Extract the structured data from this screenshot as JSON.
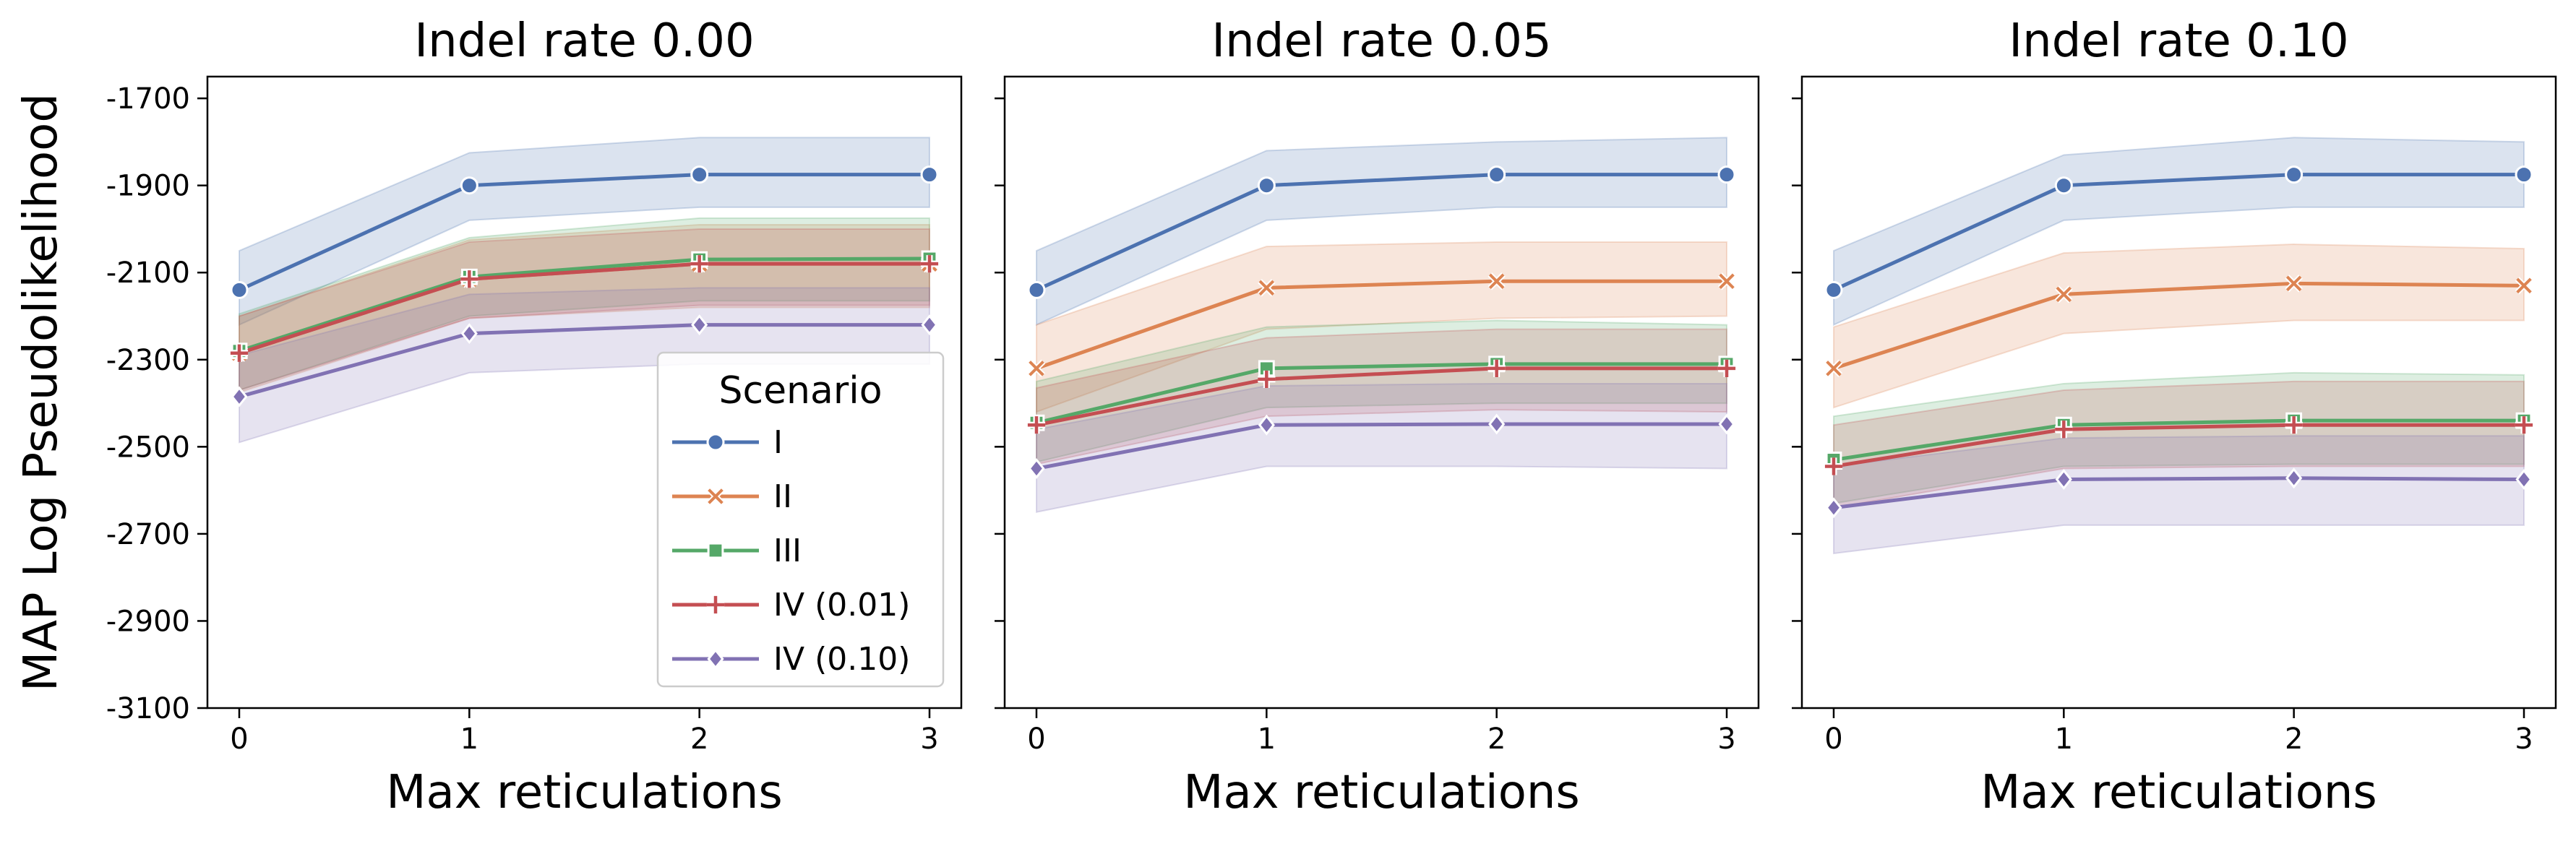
{
  "chart_data": {
    "type": "line",
    "ylabel": "MAP Log Pseudolikelihood",
    "ylim": [
      -3100,
      -1650
    ],
    "yticks": [
      -1700,
      -1900,
      -2100,
      -2300,
      -2500,
      -2700,
      -2900,
      -3100
    ],
    "x": [
      0,
      1,
      2,
      3
    ],
    "legend": {
      "title": "Scenario",
      "placement": "lower-right of first panel"
    },
    "series_style": [
      {
        "name": "I",
        "color": "#4c72b0",
        "marker": "circle"
      },
      {
        "name": "II",
        "color": "#dd8452",
        "marker": "x"
      },
      {
        "name": "III",
        "color": "#55a868",
        "marker": "square"
      },
      {
        "name": "IV (0.01)",
        "color": "#c44e52",
        "marker": "plus"
      },
      {
        "name": "IV (0.10)",
        "color": "#8172b3",
        "marker": "diamond"
      }
    ],
    "panels": [
      {
        "title": "Indel rate 0.00",
        "xlabel": "Max reticulations",
        "series": [
          {
            "name": "I",
            "values": [
              -2140,
              -1900,
              -1875,
              -1875
            ],
            "lower": [
              -2220,
              -1980,
              -1950,
              -1950
            ],
            "upper": [
              -2050,
              -1825,
              -1790,
              -1790
            ]
          },
          {
            "name": "II",
            "values": [
              -2285,
              -2115,
              -2080,
              -2080
            ],
            "lower": [
              -2375,
              -2205,
              -2180,
              -2180
            ],
            "upper": [
              -2200,
              -2025,
              -1990,
              -1990
            ]
          },
          {
            "name": "III",
            "values": [
              -2280,
              -2110,
              -2070,
              -2068
            ],
            "lower": [
              -2370,
              -2200,
              -2165,
              -2165
            ],
            "upper": [
              -2195,
              -2020,
              -1975,
              -1975
            ]
          },
          {
            "name": "IV (0.01)",
            "values": [
              -2285,
              -2115,
              -2080,
              -2080
            ],
            "lower": [
              -2370,
              -2205,
              -2175,
              -2175
            ],
            "upper": [
              -2200,
              -2030,
              -2000,
              -2000
            ]
          },
          {
            "name": "IV (0.10)",
            "values": [
              -2385,
              -2240,
              -2220,
              -2220
            ],
            "lower": [
              -2490,
              -2330,
              -2310,
              -2310
            ],
            "upper": [
              -2290,
              -2150,
              -2135,
              -2135
            ]
          }
        ]
      },
      {
        "title": "Indel rate 0.05",
        "xlabel": "Max reticulations",
        "series": [
          {
            "name": "I",
            "values": [
              -2140,
              -1900,
              -1875,
              -1875
            ],
            "lower": [
              -2220,
              -1980,
              -1950,
              -1950
            ],
            "upper": [
              -2050,
              -1820,
              -1800,
              -1790
            ]
          },
          {
            "name": "II",
            "values": [
              -2320,
              -2135,
              -2120,
              -2120
            ],
            "lower": [
              -2420,
              -2230,
              -2205,
              -2200
            ],
            "upper": [
              -2220,
              -2040,
              -2030,
              -2030
            ]
          },
          {
            "name": "III",
            "values": [
              -2445,
              -2320,
              -2310,
              -2310
            ],
            "lower": [
              -2535,
              -2410,
              -2400,
              -2400
            ],
            "upper": [
              -2350,
              -2225,
              -2210,
              -2220
            ]
          },
          {
            "name": "IV (0.01)",
            "values": [
              -2450,
              -2345,
              -2320,
              -2320
            ],
            "lower": [
              -2540,
              -2430,
              -2415,
              -2420
            ],
            "upper": [
              -2365,
              -2250,
              -2230,
              -2230
            ]
          },
          {
            "name": "IV (0.10)",
            "values": [
              -2550,
              -2450,
              -2448,
              -2448
            ],
            "lower": [
              -2650,
              -2545,
              -2545,
              -2550
            ],
            "upper": [
              -2460,
              -2360,
              -2355,
              -2355
            ]
          }
        ]
      },
      {
        "title": "Indel rate 0.10",
        "xlabel": "Max reticulations",
        "series": [
          {
            "name": "I",
            "values": [
              -2140,
              -1900,
              -1875,
              -1875
            ],
            "lower": [
              -2220,
              -1980,
              -1950,
              -1950
            ],
            "upper": [
              -2050,
              -1830,
              -1790,
              -1800
            ]
          },
          {
            "name": "II",
            "values": [
              -2320,
              -2150,
              -2125,
              -2130
            ],
            "lower": [
              -2410,
              -2240,
              -2210,
              -2210
            ],
            "upper": [
              -2225,
              -2055,
              -2035,
              -2045
            ]
          },
          {
            "name": "III",
            "values": [
              -2530,
              -2450,
              -2440,
              -2440
            ],
            "lower": [
              -2630,
              -2545,
              -2540,
              -2540
            ],
            "upper": [
              -2430,
              -2355,
              -2330,
              -2335
            ]
          },
          {
            "name": "IV (0.01)",
            "values": [
              -2545,
              -2460,
              -2450,
              -2450
            ],
            "lower": [
              -2640,
              -2550,
              -2545,
              -2545
            ],
            "upper": [
              -2450,
              -2370,
              -2350,
              -2350
            ]
          },
          {
            "name": "IV (0.10)",
            "values": [
              -2640,
              -2575,
              -2572,
              -2575
            ],
            "lower": [
              -2745,
              -2680,
              -2680,
              -2680
            ],
            "upper": [
              -2545,
              -2480,
              -2475,
              -2475
            ]
          }
        ]
      }
    ]
  }
}
